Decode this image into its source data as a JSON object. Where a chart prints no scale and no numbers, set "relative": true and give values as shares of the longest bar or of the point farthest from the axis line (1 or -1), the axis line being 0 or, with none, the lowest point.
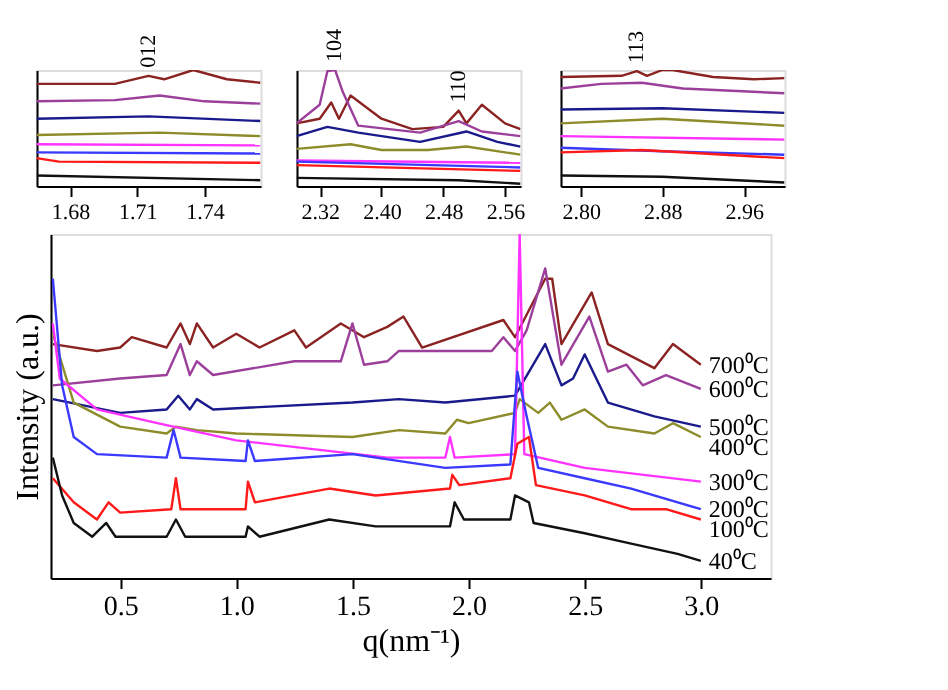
{
  "chart_data": [
    {
      "type": "line",
      "relative": true,
      "tick_labels": "x",
      "xlim": [
        1.665,
        1.765
      ],
      "xticks": [
        1.68,
        1.71,
        1.74
      ],
      "annotations": [
        {
          "text": "012",
          "x": 1.715,
          "y": 0.95
        }
      ],
      "series": [
        {
          "color": "#8b2323",
          "x": [
            1.665,
            1.7,
            1.715,
            1.722,
            1.735,
            1.75,
            1.765
          ],
          "values": [
            0.88,
            0.88,
            0.95,
            0.92,
            1.0,
            0.92,
            0.89
          ]
        },
        {
          "color": "#9b3f9b",
          "x": [
            1.665,
            1.7,
            1.72,
            1.74,
            1.765
          ],
          "values": [
            0.73,
            0.74,
            0.78,
            0.73,
            0.71
          ]
        },
        {
          "color": "#1a1a8c",
          "x": [
            1.665,
            1.715,
            1.765
          ],
          "values": [
            0.58,
            0.6,
            0.56
          ]
        },
        {
          "color": "#8c8c2a",
          "x": [
            1.665,
            1.72,
            1.765
          ],
          "values": [
            0.44,
            0.46,
            0.43
          ]
        },
        {
          "color": "#ff33ff",
          "x": [
            1.665,
            1.765
          ],
          "values": [
            0.36,
            0.35
          ]
        },
        {
          "color": "#3a3aff",
          "x": [
            1.665,
            1.765
          ],
          "values": [
            0.29,
            0.28
          ]
        },
        {
          "color": "#ff1a1a",
          "x": [
            1.665,
            1.675,
            1.765
          ],
          "values": [
            0.24,
            0.21,
            0.2
          ]
        },
        {
          "color": "#111111",
          "x": [
            1.665,
            1.765
          ],
          "values": [
            0.09,
            0.05
          ]
        }
      ]
    },
    {
      "type": "line",
      "relative": true,
      "tick_labels": "x",
      "xlim": [
        2.29,
        2.58
      ],
      "xticks": [
        2.32,
        {
          "value": 2.4,
          "label": "2.40"
        },
        2.48,
        2.56
      ],
      "annotations": [
        {
          "text": "104",
          "x": 2.34,
          "y": 1.0
        },
        {
          "text": "110",
          "x": 2.5,
          "y": 0.65
        }
      ],
      "series": [
        {
          "color": "#8b2323",
          "x": [
            2.29,
            2.32,
            2.335,
            2.345,
            2.36,
            2.4,
            2.44,
            2.48,
            2.5,
            2.51,
            2.53,
            2.56,
            2.58
          ],
          "values": [
            0.54,
            0.58,
            0.72,
            0.58,
            0.78,
            0.58,
            0.49,
            0.51,
            0.65,
            0.54,
            0.7,
            0.54,
            0.49
          ]
        },
        {
          "color": "#9b3f9b",
          "x": [
            2.29,
            2.32,
            2.33,
            2.34,
            2.35,
            2.37,
            2.45,
            2.5,
            2.53,
            2.58
          ],
          "values": [
            0.54,
            0.7,
            0.99,
            1.0,
            0.81,
            0.52,
            0.46,
            0.56,
            0.47,
            0.43
          ]
        },
        {
          "color": "#1a1a8c",
          "x": [
            2.29,
            2.33,
            2.37,
            2.45,
            2.51,
            2.55,
            2.58
          ],
          "values": [
            0.43,
            0.51,
            0.46,
            0.38,
            0.47,
            0.38,
            0.34
          ]
        },
        {
          "color": "#8c8c2a",
          "x": [
            2.29,
            2.36,
            2.4,
            2.46,
            2.51,
            2.58
          ],
          "values": [
            0.32,
            0.36,
            0.31,
            0.31,
            0.34,
            0.27
          ]
        },
        {
          "color": "#ff33ff",
          "x": [
            2.29,
            2.58
          ],
          "values": [
            0.22,
            0.2
          ]
        },
        {
          "color": "#3a3aff",
          "x": [
            2.29,
            2.58
          ],
          "values": [
            0.21,
            0.16
          ]
        },
        {
          "color": "#ff1a1a",
          "x": [
            2.29,
            2.58
          ],
          "values": [
            0.18,
            0.13
          ]
        },
        {
          "color": "#111111",
          "x": [
            2.29,
            2.5,
            2.58
          ],
          "values": [
            0.07,
            0.05,
            0.02
          ]
        }
      ]
    },
    {
      "type": "line",
      "relative": true,
      "tick_labels": "x",
      "xlim": [
        2.78,
        3.0
      ],
      "xticks": [
        {
          "value": 2.8,
          "label": "2.80"
        },
        2.88,
        2.96
      ],
      "annotations": [
        {
          "text": "113",
          "x": 2.855,
          "y": 0.99
        }
      ],
      "series": [
        {
          "color": "#8b2323",
          "x": [
            2.78,
            2.84,
            2.855,
            2.865,
            2.88,
            2.89,
            2.93,
            2.97,
            3.0
          ],
          "values": [
            0.94,
            0.95,
            0.99,
            0.95,
            1.0,
            1.0,
            0.94,
            0.92,
            0.93
          ]
        },
        {
          "color": "#9b3f9b",
          "x": [
            2.78,
            2.82,
            2.86,
            2.9,
            3.0
          ],
          "values": [
            0.84,
            0.88,
            0.89,
            0.84,
            0.8
          ]
        },
        {
          "color": "#1a1a8c",
          "x": [
            2.78,
            2.88,
            3.0
          ],
          "values": [
            0.66,
            0.67,
            0.63
          ]
        },
        {
          "color": "#8c8c2a",
          "x": [
            2.78,
            2.88,
            3.0
          ],
          "values": [
            0.54,
            0.58,
            0.52
          ]
        },
        {
          "color": "#ff33ff",
          "x": [
            2.78,
            3.0
          ],
          "values": [
            0.43,
            0.4
          ]
        },
        {
          "color": "#3a3aff",
          "x": [
            2.78,
            2.88,
            3.0
          ],
          "values": [
            0.33,
            0.3,
            0.27
          ]
        },
        {
          "color": "#ff1a1a",
          "x": [
            2.78,
            2.86,
            3.0
          ],
          "values": [
            0.29,
            0.31,
            0.24
          ]
        },
        {
          "color": "#111111",
          "x": [
            2.78,
            2.88,
            3.0
          ],
          "values": [
            0.09,
            0.08,
            0.03
          ]
        }
      ]
    },
    {
      "type": "line",
      "relative": true,
      "tick_labels": "x",
      "xlabel": "q(nm⁻¹)",
      "ylabel": "Intensity (a.u.)",
      "xlim": [
        0.2,
        3.3
      ],
      "xticks": [
        0.5,
        {
          "value": 1.0,
          "label": "1.0"
        },
        1.5,
        {
          "value": 2.0,
          "label": "2.0"
        },
        2.5,
        {
          "value": 3.0,
          "label": "3.0"
        }
      ],
      "series": [
        {
          "name": "700⁰C",
          "color": "#8b2323",
          "x": [
            0.21,
            0.4,
            0.5,
            0.55,
            0.7,
            0.76,
            0.8,
            0.83,
            0.9,
            1.0,
            1.1,
            1.25,
            1.3,
            1.45,
            1.55,
            1.65,
            1.72,
            1.8,
            2.15,
            2.2,
            2.33,
            2.36,
            2.4,
            2.53,
            2.6,
            2.8,
            2.88,
            3.0
          ],
          "values": [
            0.68,
            0.66,
            0.67,
            0.7,
            0.67,
            0.74,
            0.68,
            0.74,
            0.67,
            0.71,
            0.67,
            0.72,
            0.67,
            0.74,
            0.7,
            0.73,
            0.76,
            0.67,
            0.75,
            0.7,
            0.87,
            0.87,
            0.68,
            0.83,
            0.68,
            0.61,
            0.68,
            0.62
          ]
        },
        {
          "name": "600⁰C",
          "color": "#9b3f9b",
          "x": [
            0.21,
            0.5,
            0.7,
            0.76,
            0.8,
            0.83,
            0.9,
            1.25,
            1.45,
            1.5,
            1.55,
            1.65,
            1.7,
            2.1,
            2.15,
            2.2,
            2.25,
            2.33,
            2.4,
            2.52,
            2.6,
            2.68,
            2.75,
            2.85,
            3.0
          ],
          "values": [
            0.56,
            0.58,
            0.59,
            0.68,
            0.59,
            0.63,
            0.59,
            0.63,
            0.63,
            0.74,
            0.62,
            0.63,
            0.66,
            0.66,
            0.7,
            0.66,
            0.72,
            0.9,
            0.62,
            0.76,
            0.6,
            0.62,
            0.56,
            0.59,
            0.55
          ]
        },
        {
          "name": "500⁰C",
          "color": "#1a1a8c",
          "x": [
            0.21,
            0.5,
            0.7,
            0.75,
            0.8,
            0.83,
            0.9,
            1.5,
            1.7,
            1.9,
            2.2,
            2.33,
            2.4,
            2.45,
            2.5,
            2.6,
            2.8,
            3.0
          ],
          "values": [
            0.52,
            0.48,
            0.49,
            0.53,
            0.49,
            0.52,
            0.49,
            0.51,
            0.52,
            0.51,
            0.53,
            0.68,
            0.56,
            0.58,
            0.65,
            0.51,
            0.47,
            0.44
          ]
        },
        {
          "name": "400⁰C",
          "color": "#8c8c2a",
          "x": [
            0.21,
            0.3,
            0.5,
            0.7,
            0.74,
            0.83,
            1.0,
            1.5,
            1.7,
            1.9,
            1.95,
            2.0,
            2.2,
            2.22,
            2.3,
            2.35,
            2.4,
            2.5,
            2.6,
            2.8,
            2.88,
            3.0
          ],
          "values": [
            0.71,
            0.51,
            0.44,
            0.42,
            0.44,
            0.43,
            0.42,
            0.41,
            0.43,
            0.42,
            0.46,
            0.45,
            0.48,
            0.52,
            0.48,
            0.51,
            0.46,
            0.49,
            0.44,
            0.42,
            0.45,
            0.41
          ]
        },
        {
          "name": "300⁰C",
          "color": "#ff33ff",
          "x": [
            0.21,
            0.24,
            0.4,
            0.66,
            1.0,
            1.65,
            1.9,
            1.92,
            1.94,
            2.2,
            2.22,
            2.24,
            2.5,
            3.0
          ],
          "values": [
            0.74,
            0.58,
            0.49,
            0.45,
            0.4,
            0.35,
            0.35,
            0.41,
            0.35,
            0.36,
            1.0,
            0.36,
            0.32,
            0.28
          ]
        },
        {
          "name": "200⁰C",
          "color": "#3a3aff",
          "x": [
            0.21,
            0.25,
            0.3,
            0.4,
            0.7,
            0.73,
            0.76,
            1.04,
            1.05,
            1.08,
            1.5,
            1.9,
            2.18,
            2.21,
            2.25,
            2.3,
            2.5,
            2.7,
            3.0
          ],
          "values": [
            0.87,
            0.56,
            0.41,
            0.36,
            0.35,
            0.43,
            0.35,
            0.34,
            0.4,
            0.34,
            0.36,
            0.32,
            0.33,
            0.6,
            0.47,
            0.32,
            0.29,
            0.26,
            0.2
          ]
        },
        {
          "name": "100⁰C",
          "color": "#ff1a1a",
          "x": [
            0.21,
            0.3,
            0.4,
            0.45,
            0.5,
            0.72,
            0.74,
            0.76,
            1.04,
            1.05,
            1.08,
            1.4,
            1.6,
            1.92,
            1.93,
            1.96,
            2.18,
            2.21,
            2.26,
            2.29,
            2.5,
            2.7,
            2.85,
            3.0
          ],
          "values": [
            0.29,
            0.22,
            0.17,
            0.22,
            0.19,
            0.2,
            0.29,
            0.2,
            0.2,
            0.28,
            0.22,
            0.26,
            0.24,
            0.26,
            0.3,
            0.27,
            0.29,
            0.39,
            0.41,
            0.27,
            0.24,
            0.2,
            0.2,
            0.17
          ]
        },
        {
          "name": "40⁰C",
          "color": "#111111",
          "x": [
            0.21,
            0.25,
            0.3,
            0.38,
            0.44,
            0.48,
            0.7,
            0.74,
            0.78,
            1.04,
            1.05,
            1.1,
            1.4,
            1.6,
            1.92,
            1.94,
            1.98,
            2.18,
            2.2,
            2.26,
            2.28,
            2.5,
            2.7,
            2.9,
            3.0
          ],
          "values": [
            0.35,
            0.24,
            0.16,
            0.12,
            0.16,
            0.12,
            0.12,
            0.17,
            0.12,
            0.12,
            0.15,
            0.12,
            0.17,
            0.15,
            0.15,
            0.22,
            0.17,
            0.17,
            0.24,
            0.22,
            0.16,
            0.13,
            0.1,
            0.07,
            0.05
          ]
        }
      ]
    }
  ]
}
